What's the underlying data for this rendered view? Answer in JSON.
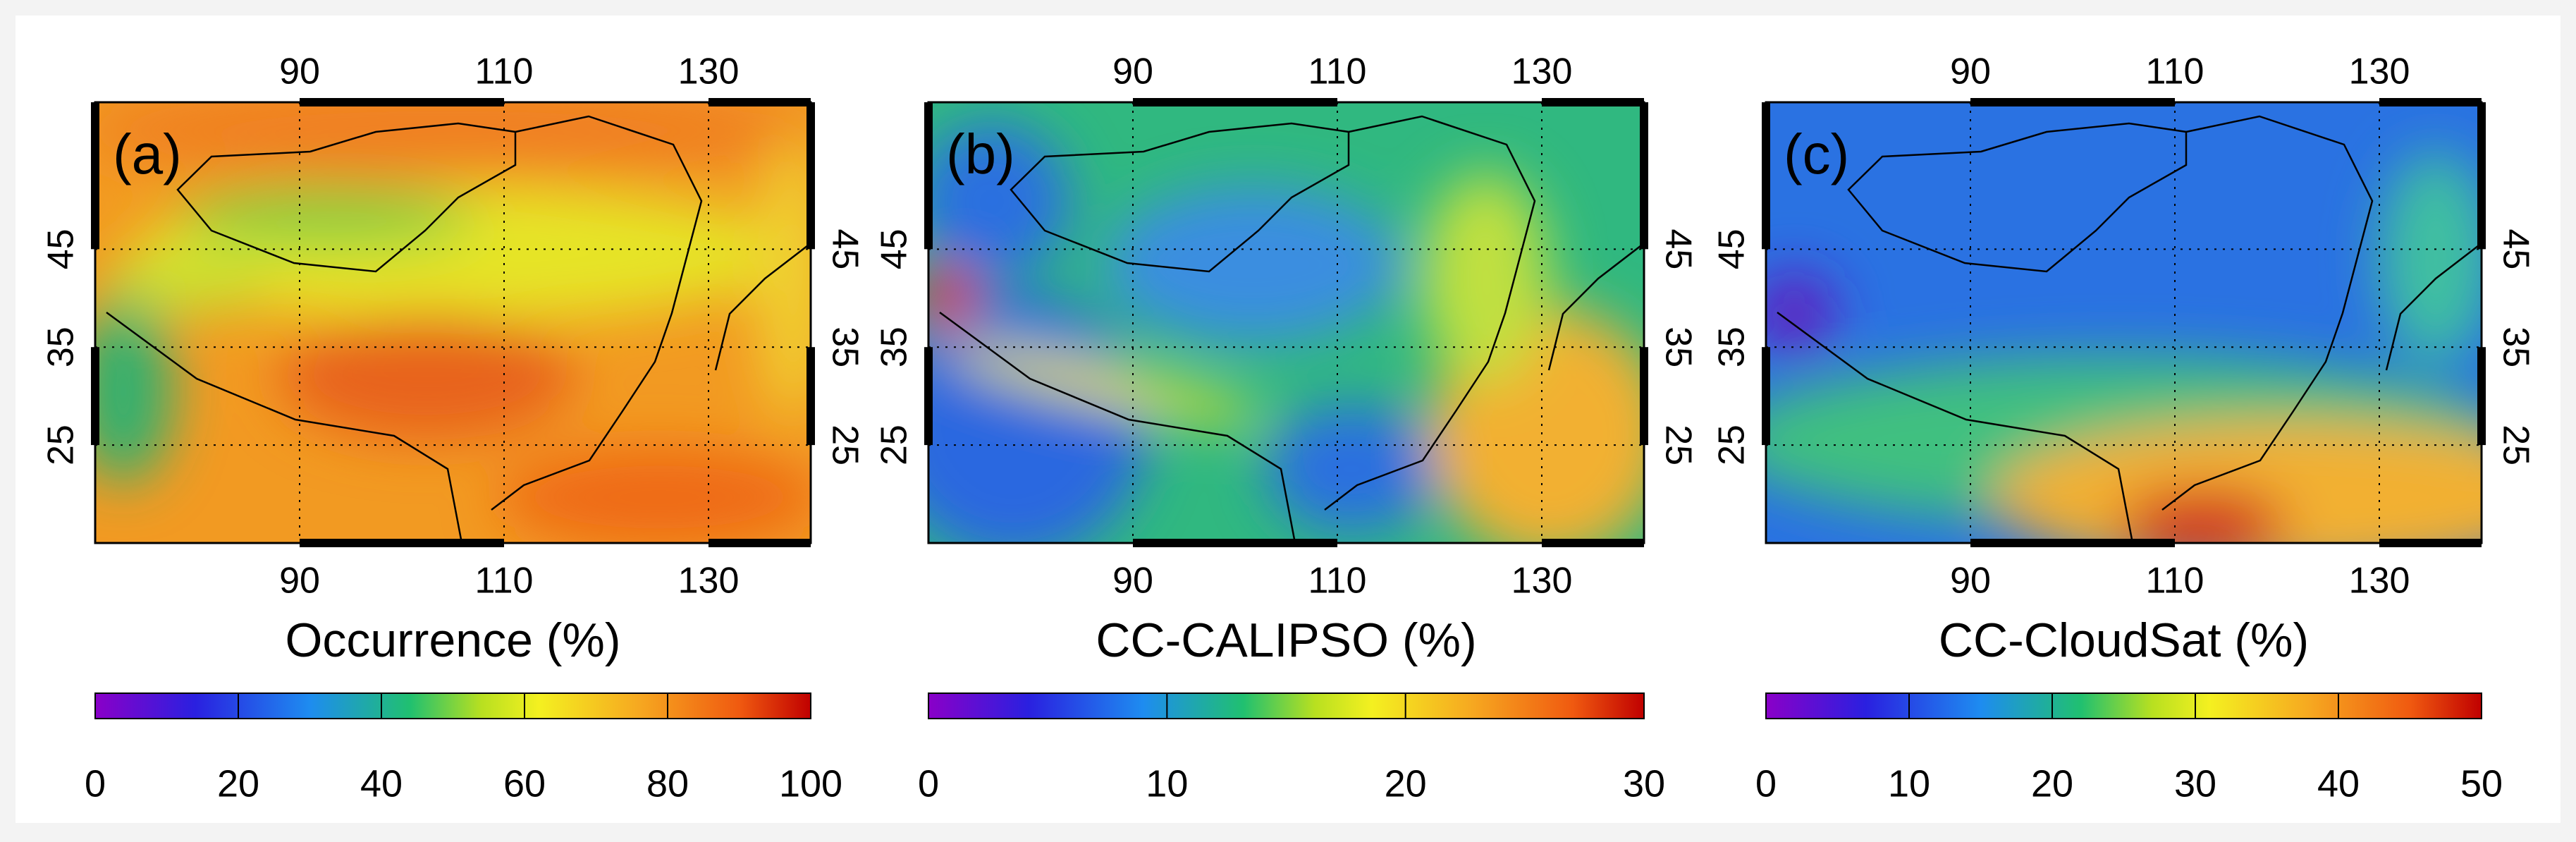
{
  "panels": [
    {
      "label": "(a)",
      "title": "Occurrence (%)",
      "xlim": [
        70,
        140
      ],
      "ylim": [
        15,
        60
      ],
      "xticks": [
        90,
        110,
        130
      ],
      "yticks": [
        25,
        35,
        45
      ],
      "colorbar": {
        "lim": [
          0,
          100
        ],
        "ticks": [
          0,
          20,
          40,
          60,
          80,
          100
        ]
      }
    },
    {
      "label": "(b)",
      "title": "CC-CALIPSO (%)",
      "xlim": [
        70,
        140
      ],
      "ylim": [
        15,
        60
      ],
      "xticks": [
        90,
        110,
        130
      ],
      "yticks": [
        25,
        35,
        45
      ],
      "colorbar": {
        "lim": [
          0,
          30
        ],
        "ticks": [
          0,
          10,
          20,
          30
        ]
      }
    },
    {
      "label": "(c)",
      "title": "CC-CloudSat (%)",
      "xlim": [
        70,
        140
      ],
      "ylim": [
        15,
        60
      ],
      "xticks": [
        90,
        110,
        130
      ],
      "yticks": [
        25,
        35,
        45
      ],
      "colorbar": {
        "lim": [
          0,
          50
        ],
        "ticks": [
          0,
          10,
          20,
          30,
          40,
          50
        ]
      }
    }
  ]
}
